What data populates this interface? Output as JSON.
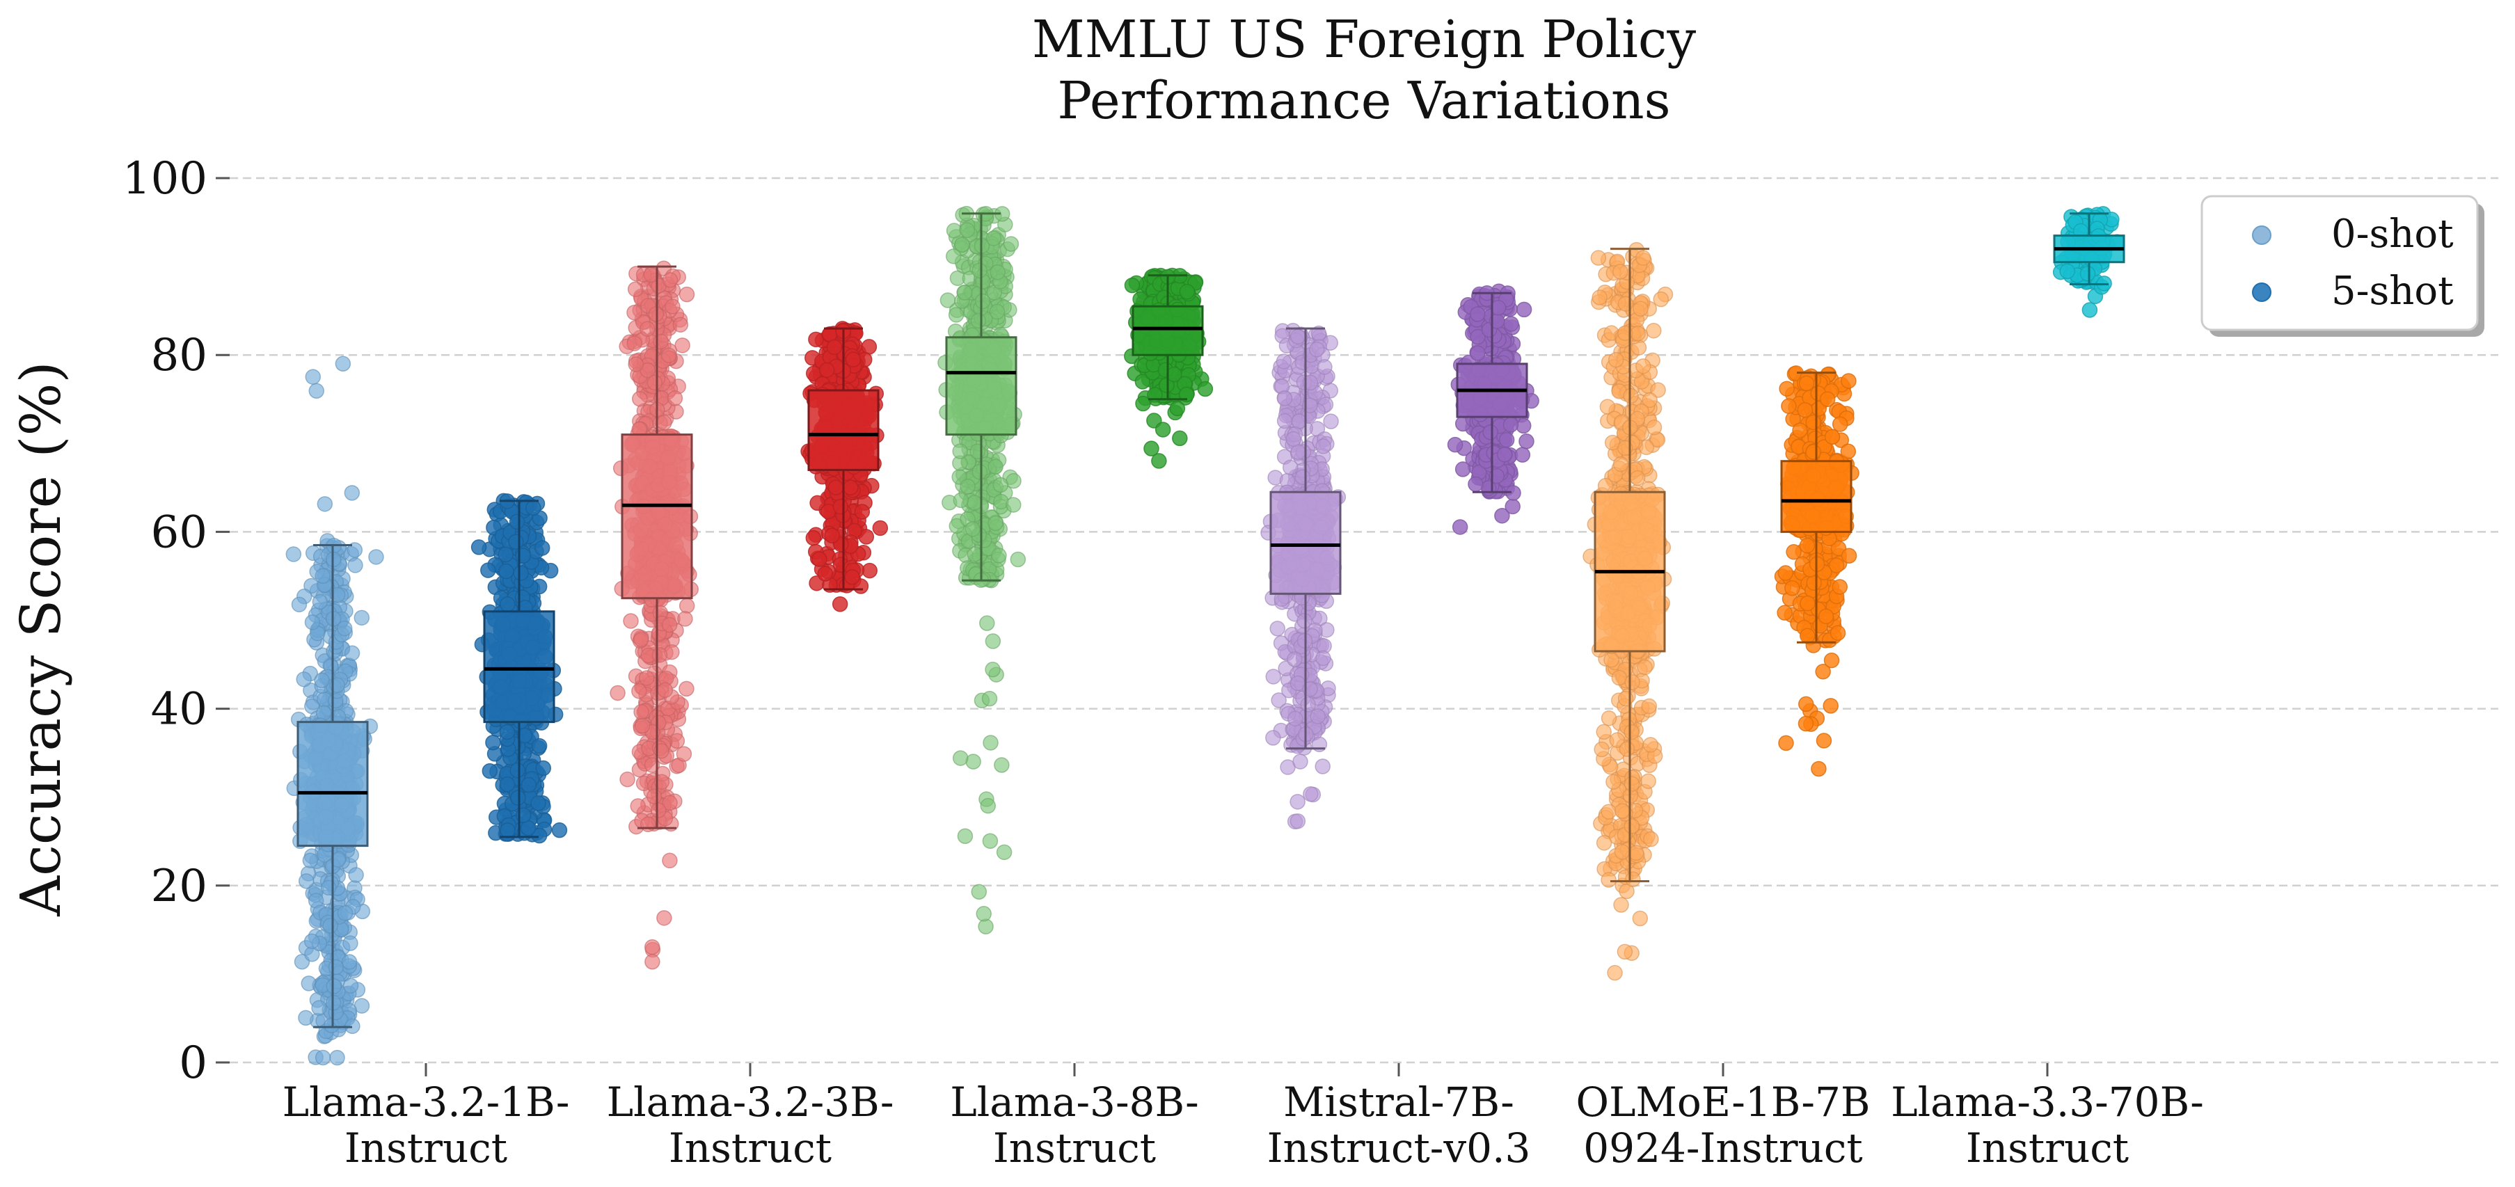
{
  "chart_data": {
    "type": "box",
    "title": [
      "MMLU US Foreign Policy",
      "Performance Variations"
    ],
    "ylabel": "Accuracy Score (%)",
    "xlabel": "",
    "ylim": [
      0,
      100
    ],
    "yticks": [
      0,
      20,
      40,
      60,
      80,
      100
    ],
    "grid": "horizontal dashed",
    "categories": [
      [
        "Llama-3.2-1B-",
        "Instruct"
      ],
      [
        "Llama-3.2-3B-",
        "Instruct"
      ],
      [
        "Llama-3-8B-",
        "Instruct"
      ],
      [
        "Mistral-7B-",
        "Instruct-v0.3"
      ],
      [
        "OLMoE-1B-7B",
        "0924-Instruct"
      ],
      [
        "Llama-3.3-70B-",
        "Instruct"
      ]
    ],
    "legend": {
      "position": "top-right",
      "entries": [
        {
          "label": "0-shot",
          "color": "#8fb8db"
        },
        {
          "label": "5-shot",
          "color": "#3a84bf"
        }
      ]
    },
    "series": [
      {
        "name": "0-shot",
        "boxes": [
          {
            "model": "Llama-3.2-1B-Instruct",
            "color": "#6fa8d6",
            "whisker_low": 4,
            "q1": 24.5,
            "median": 30.5,
            "q3": 38.5,
            "whisker_high": 58.5,
            "point_min": 0,
            "point_max": 80,
            "n_points": 700
          },
          {
            "model": "Llama-3.2-3B-Instruct",
            "color": "#e87476",
            "whisker_low": 26.5,
            "q1": 52.5,
            "median": 63,
            "q3": 71,
            "whisker_high": 90,
            "point_min": 10,
            "point_max": 90,
            "n_points": 700
          },
          {
            "model": "Llama-3-8B-Instruct",
            "color": "#7bc476",
            "whisker_low": 54.5,
            "q1": 71,
            "median": 78,
            "q3": 82,
            "whisker_high": 96,
            "point_min": 15,
            "point_max": 96,
            "n_points": 700
          },
          {
            "model": "Mistral-7B-Instruct-v0.3",
            "color": "#b89ad6",
            "whisker_low": 35.5,
            "q1": 53,
            "median": 58.5,
            "q3": 64.5,
            "whisker_high": 83,
            "point_min": 25.5,
            "point_max": 83,
            "n_points": 600
          },
          {
            "model": "OLMoE-1B-7B-0924-Instruct",
            "color": "#ffab5e",
            "whisker_low": 20.5,
            "q1": 46.5,
            "median": 55.5,
            "q3": 64.5,
            "whisker_high": 92,
            "point_min": 7,
            "point_max": 96,
            "n_points": 700
          }
        ]
      },
      {
        "name": "5-shot",
        "boxes": [
          {
            "model": "Llama-3.2-1B-Instruct",
            "color": "#1f6fb0",
            "whisker_low": 25.5,
            "q1": 38.5,
            "median": 44.5,
            "q3": 51,
            "whisker_high": 63.5,
            "point_min": 25,
            "point_max": 63.5,
            "n_points": 600
          },
          {
            "model": "Llama-3.2-3B-Instruct",
            "color": "#d62728",
            "whisker_low": 53.5,
            "q1": 67,
            "median": 71,
            "q3": 76,
            "whisker_high": 83,
            "point_min": 51.5,
            "point_max": 83,
            "n_points": 500
          },
          {
            "model": "Llama-3-8B-Instruct",
            "color": "#2ca02c",
            "whisker_low": 75,
            "q1": 80,
            "median": 83,
            "q3": 85.5,
            "whisker_high": 89,
            "point_min": 66,
            "point_max": 90,
            "n_points": 500
          },
          {
            "model": "Mistral-7B-Instruct-v0.3",
            "color": "#9467bd",
            "whisker_low": 64.5,
            "q1": 73,
            "median": 76,
            "q3": 79,
            "whisker_high": 87,
            "point_min": 59,
            "point_max": 88,
            "n_points": 450
          },
          {
            "model": "OLMoE-1B-7B-0924-Instruct",
            "color": "#ff7f0e",
            "whisker_low": 47.5,
            "q1": 60,
            "median": 63.5,
            "q3": 68,
            "whisker_high": 78,
            "point_min": 31.5,
            "point_max": 78,
            "n_points": 550
          },
          {
            "model": "Llama-3.3-70B-Instruct",
            "color": "#17becf",
            "whisker_low": 88,
            "q1": 90.5,
            "median": 92,
            "q3": 93.5,
            "whisker_high": 96,
            "point_min": 84,
            "point_max": 96,
            "n_points": 100
          }
        ]
      }
    ]
  }
}
